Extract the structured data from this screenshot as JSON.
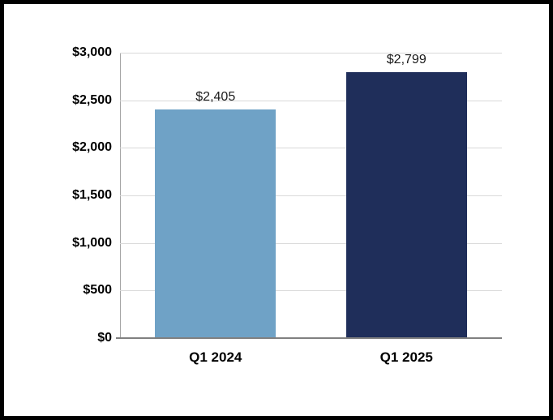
{
  "chart_data": {
    "type": "bar",
    "title": "",
    "xlabel": "",
    "ylabel": "",
    "categories": [
      "Q1 2024",
      "Q1 2025"
    ],
    "values": [
      2405,
      2799
    ],
    "value_labels": [
      "$2,405",
      "$2,799"
    ],
    "bar_colors": [
      "#6FA2C6",
      "#1F2E5A"
    ],
    "ylim": [
      0,
      3000
    ],
    "yticks": [
      {
        "value": 0,
        "label": "$0"
      },
      {
        "value": 500,
        "label": "$500"
      },
      {
        "value": 1000,
        "label": "$1,000"
      },
      {
        "value": 1500,
        "label": "$1,500"
      },
      {
        "value": 2000,
        "label": "$2,000"
      },
      {
        "value": 2500,
        "label": "$2,500"
      },
      {
        "value": 3000,
        "label": "$3,000"
      }
    ],
    "grid": true,
    "legend": "none",
    "colors": {
      "gridline": "#D9D9D9",
      "x_axis_line": "#808080",
      "y_axis_line": "#A6A6A6",
      "text": "#000000",
      "background": "#FFFFFF",
      "frame_border": "#000000"
    }
  }
}
